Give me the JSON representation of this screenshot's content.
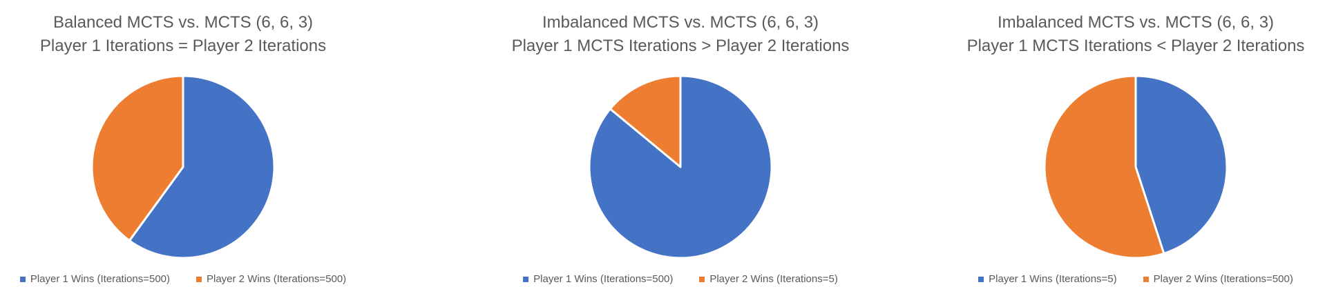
{
  "colors": {
    "player1": "#4472C4",
    "player2": "#ED7D31",
    "text": "#595959"
  },
  "chart_data": [
    {
      "type": "pie",
      "title_line1": "Balanced MCTS vs. MCTS (6, 6, 3)",
      "title_line2": "Player 1 Iterations = Player 2 Iterations",
      "legend_position": "bottom",
      "slices": [
        {
          "label": "Player 1 Wins (Iterations=500)",
          "value": 60,
          "color": "#4472C4"
        },
        {
          "label": "Player 2 Wins (Iterations=500)",
          "value": 40,
          "color": "#ED7D31"
        }
      ]
    },
    {
      "type": "pie",
      "title_line1": "Imbalanced MCTS vs. MCTS (6, 6, 3)",
      "title_line2": "Player 1 MCTS Iterations > Player 2 Iterations",
      "legend_position": "bottom",
      "slices": [
        {
          "label": "Player 1 Wins (Iterations=500)",
          "value": 86,
          "color": "#4472C4"
        },
        {
          "label": "Player 2 Wins (Iterations=5)",
          "value": 14,
          "color": "#ED7D31"
        }
      ]
    },
    {
      "type": "pie",
      "title_line1": "Imbalanced MCTS vs. MCTS (6, 6, 3)",
      "title_line2": "Player 1 MCTS Iterations < Player 2 Iterations",
      "legend_position": "bottom",
      "slices": [
        {
          "label": "Player 1 Wins (Iterations=5)",
          "value": 45,
          "color": "#4472C4"
        },
        {
          "label": "Player 2 Wins (Iterations=500)",
          "value": 55,
          "color": "#ED7D31"
        }
      ]
    }
  ]
}
